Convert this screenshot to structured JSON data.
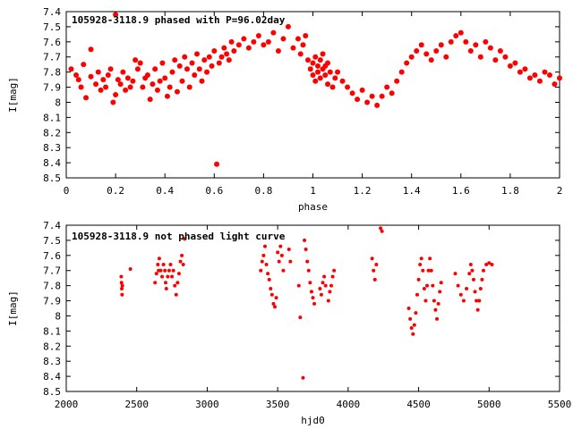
{
  "chart_data": [
    {
      "type": "scatter",
      "title": "105928-3118.9 phased with P=96.02day",
      "xlabel": "phase",
      "ylabel": "I[mag]",
      "xlim": [
        0,
        2
      ],
      "ylim": [
        8.5,
        7.4
      ],
      "y_inverted": true,
      "grid": false,
      "marker": "filled-circle",
      "color": "#ff0000",
      "xticks": [
        "0",
        "0.2",
        "0.4",
        "0.6",
        "0.8",
        "1",
        "1.2",
        "1.4",
        "1.6",
        "1.8",
        "2"
      ],
      "yticks": [
        "7.4",
        "7.5",
        "7.6",
        "7.7",
        "7.8",
        "7.9",
        "8",
        "8.1",
        "8.2",
        "8.3",
        "8.4",
        "8.5"
      ],
      "series": [
        {
          "points": [
            [
              0.02,
              7.78
            ],
            [
              0.04,
              7.82
            ],
            [
              0.05,
              7.85
            ],
            [
              0.06,
              7.9
            ],
            [
              0.07,
              7.75
            ],
            [
              0.08,
              7.97
            ],
            [
              0.1,
              7.65
            ],
            [
              0.1,
              7.83
            ],
            [
              0.12,
              7.88
            ],
            [
              0.13,
              7.8
            ],
            [
              0.14,
              7.92
            ],
            [
              0.15,
              7.85
            ],
            [
              0.16,
              7.9
            ],
            [
              0.17,
              7.82
            ],
            [
              0.18,
              7.78
            ],
            [
              0.19,
              8.0
            ],
            [
              0.2,
              7.95
            ],
            [
              0.2,
              7.42
            ],
            [
              0.21,
              7.85
            ],
            [
              0.22,
              7.88
            ],
            [
              0.23,
              7.8
            ],
            [
              0.24,
              7.92
            ],
            [
              0.25,
              7.84
            ],
            [
              0.26,
              7.9
            ],
            [
              0.27,
              7.86
            ],
            [
              0.28,
              7.72
            ],
            [
              0.29,
              7.78
            ],
            [
              0.3,
              7.74
            ],
            [
              0.31,
              7.9
            ],
            [
              0.32,
              7.84
            ],
            [
              0.33,
              7.82
            ],
            [
              0.34,
              7.98
            ],
            [
              0.35,
              7.88
            ],
            [
              0.36,
              7.78
            ],
            [
              0.37,
              7.92
            ],
            [
              0.38,
              7.86
            ],
            [
              0.39,
              7.74
            ],
            [
              0.4,
              7.84
            ],
            [
              0.41,
              7.96
            ],
            [
              0.42,
              7.9
            ],
            [
              0.43,
              7.8
            ],
            [
              0.44,
              7.72
            ],
            [
              0.45,
              7.93
            ],
            [
              0.46,
              7.76
            ],
            [
              0.47,
              7.86
            ],
            [
              0.48,
              7.7
            ],
            [
              0.49,
              7.78
            ],
            [
              0.5,
              7.9
            ],
            [
              0.51,
              7.74
            ],
            [
              0.52,
              7.82
            ],
            [
              0.53,
              7.68
            ],
            [
              0.54,
              7.78
            ],
            [
              0.55,
              7.86
            ],
            [
              0.56,
              7.72
            ],
            [
              0.57,
              7.8
            ],
            [
              0.58,
              7.7
            ],
            [
              0.59,
              7.76
            ],
            [
              0.6,
              7.66
            ],
            [
              0.61,
              8.41
            ],
            [
              0.62,
              7.74
            ],
            [
              0.63,
              7.7
            ],
            [
              0.64,
              7.64
            ],
            [
              0.65,
              7.68
            ],
            [
              0.66,
              7.72
            ],
            [
              0.67,
              7.6
            ],
            [
              0.68,
              7.66
            ],
            [
              0.7,
              7.62
            ],
            [
              0.72,
              7.58
            ],
            [
              0.74,
              7.64
            ],
            [
              0.76,
              7.6
            ],
            [
              0.78,
              7.56
            ],
            [
              0.8,
              7.62
            ],
            [
              0.82,
              7.6
            ],
            [
              0.84,
              7.54
            ],
            [
              0.86,
              7.66
            ],
            [
              0.88,
              7.58
            ],
            [
              0.9,
              7.5
            ],
            [
              0.92,
              7.64
            ],
            [
              0.94,
              7.58
            ],
            [
              0.95,
              7.68
            ],
            [
              0.96,
              7.62
            ],
            [
              0.97,
              7.56
            ],
            [
              0.98,
              7.72
            ],
            [
              0.99,
              7.78
            ],
            [
              1.0,
              7.74
            ],
            [
              1.0,
              7.82
            ],
            [
              1.01,
              7.7
            ],
            [
              1.01,
              7.86
            ],
            [
              1.02,
              7.76
            ],
            [
              1.02,
              7.8
            ],
            [
              1.03,
              7.72
            ],
            [
              1.03,
              7.84
            ],
            [
              1.04,
              7.78
            ],
            [
              1.04,
              7.68
            ],
            [
              1.05,
              7.82
            ],
            [
              1.05,
              7.76
            ],
            [
              1.06,
              7.74
            ],
            [
              1.06,
              7.88
            ],
            [
              1.07,
              7.8
            ],
            [
              1.08,
              7.9
            ],
            [
              1.09,
              7.84
            ],
            [
              1.1,
              7.8
            ],
            [
              1.12,
              7.86
            ],
            [
              1.14,
              7.9
            ],
            [
              1.16,
              7.94
            ],
            [
              1.18,
              7.98
            ],
            [
              1.2,
              7.92
            ],
            [
              1.22,
              8.0
            ],
            [
              1.24,
              7.96
            ],
            [
              1.26,
              8.02
            ],
            [
              1.28,
              7.96
            ],
            [
              1.3,
              7.9
            ],
            [
              1.32,
              7.94
            ],
            [
              1.34,
              7.86
            ],
            [
              1.36,
              7.8
            ],
            [
              1.38,
              7.74
            ],
            [
              1.4,
              7.7
            ],
            [
              1.42,
              7.66
            ],
            [
              1.44,
              7.62
            ],
            [
              1.46,
              7.68
            ],
            [
              1.48,
              7.72
            ],
            [
              1.5,
              7.66
            ],
            [
              1.52,
              7.62
            ],
            [
              1.54,
              7.7
            ],
            [
              1.56,
              7.6
            ],
            [
              1.58,
              7.56
            ],
            [
              1.6,
              7.54
            ],
            [
              1.62,
              7.6
            ],
            [
              1.64,
              7.66
            ],
            [
              1.66,
              7.62
            ],
            [
              1.68,
              7.7
            ],
            [
              1.7,
              7.6
            ],
            [
              1.72,
              7.64
            ],
            [
              1.74,
              7.72
            ],
            [
              1.76,
              7.66
            ],
            [
              1.78,
              7.7
            ],
            [
              1.8,
              7.76
            ],
            [
              1.82,
              7.74
            ],
            [
              1.84,
              7.8
            ],
            [
              1.86,
              7.78
            ],
            [
              1.88,
              7.84
            ],
            [
              1.9,
              7.82
            ],
            [
              1.92,
              7.86
            ],
            [
              1.94,
              7.8
            ],
            [
              1.96,
              7.82
            ],
            [
              1.98,
              7.88
            ],
            [
              2.0,
              7.84
            ]
          ]
        }
      ]
    },
    {
      "type": "scatter",
      "title": "105928-3118.9 not phased light curve",
      "xlabel": "hjd0",
      "ylabel": "I[mag]",
      "xlim": [
        2000,
        5500
      ],
      "ylim": [
        8.5,
        7.4
      ],
      "y_inverted": true,
      "grid": false,
      "marker": "filled-circle",
      "color": "#ff0000",
      "xticks": [
        "2000",
        "2500",
        "3000",
        "3500",
        "4000",
        "4500",
        "5000",
        "5500"
      ],
      "yticks": [
        "7.4",
        "7.5",
        "7.6",
        "7.7",
        "7.8",
        "7.9",
        "8",
        "8.1",
        "8.2",
        "8.3",
        "8.4",
        "8.5"
      ],
      "series": [
        {
          "points": [
            [
              2390,
              7.74
            ],
            [
              2392,
              7.78
            ],
            [
              2394,
              7.82
            ],
            [
              2396,
              7.86
            ],
            [
              2398,
              7.8
            ],
            [
              2455,
              7.69
            ],
            [
              2630,
              7.78
            ],
            [
              2640,
              7.72
            ],
            [
              2650,
              7.66
            ],
            [
              2655,
              7.7
            ],
            [
              2660,
              7.62
            ],
            [
              2670,
              7.7
            ],
            [
              2680,
              7.74
            ],
            [
              2690,
              7.66
            ],
            [
              2700,
              7.7
            ],
            [
              2705,
              7.78
            ],
            [
              2710,
              7.82
            ],
            [
              2720,
              7.74
            ],
            [
              2730,
              7.7
            ],
            [
              2740,
              7.66
            ],
            [
              2750,
              7.74
            ],
            [
              2760,
              7.7
            ],
            [
              2770,
              7.8
            ],
            [
              2780,
              7.86
            ],
            [
              2790,
              7.78
            ],
            [
              2800,
              7.72
            ],
            [
              2810,
              7.64
            ],
            [
              2820,
              7.6
            ],
            [
              2830,
              7.66
            ],
            [
              2840,
              7.49
            ],
            [
              3380,
              7.7
            ],
            [
              3390,
              7.64
            ],
            [
              3400,
              7.6
            ],
            [
              3410,
              7.54
            ],
            [
              3420,
              7.66
            ],
            [
              3430,
              7.72
            ],
            [
              3440,
              7.76
            ],
            [
              3450,
              7.82
            ],
            [
              3460,
              7.86
            ],
            [
              3470,
              7.92
            ],
            [
              3480,
              7.94
            ],
            [
              3490,
              7.88
            ],
            [
              3500,
              7.58
            ],
            [
              3510,
              7.64
            ],
            [
              3520,
              7.54
            ],
            [
              3530,
              7.6
            ],
            [
              3540,
              7.7
            ],
            [
              3580,
              7.56
            ],
            [
              3590,
              7.64
            ],
            [
              3650,
              7.8
            ],
            [
              3660,
              8.01
            ],
            [
              3680,
              8.41
            ],
            [
              3690,
              7.5
            ],
            [
              3700,
              7.56
            ],
            [
              3710,
              7.64
            ],
            [
              3720,
              7.7
            ],
            [
              3730,
              7.78
            ],
            [
              3740,
              7.84
            ],
            [
              3750,
              7.88
            ],
            [
              3760,
              7.92
            ],
            [
              3800,
              7.82
            ],
            [
              3810,
              7.86
            ],
            [
              3820,
              7.78
            ],
            [
              3830,
              7.74
            ],
            [
              3840,
              7.8
            ],
            [
              3860,
              7.9
            ],
            [
              3870,
              7.84
            ],
            [
              3880,
              7.8
            ],
            [
              3890,
              7.74
            ],
            [
              3900,
              7.7
            ],
            [
              4170,
              7.62
            ],
            [
              4180,
              7.7
            ],
            [
              4190,
              7.76
            ],
            [
              4200,
              7.66
            ],
            [
              4230,
              7.42
            ],
            [
              4240,
              7.44
            ],
            [
              4430,
              7.95
            ],
            [
              4440,
              8.02
            ],
            [
              4450,
              8.08
            ],
            [
              4460,
              8.12
            ],
            [
              4470,
              8.06
            ],
            [
              4480,
              7.98
            ],
            [
              4490,
              7.86
            ],
            [
              4500,
              7.76
            ],
            [
              4510,
              7.66
            ],
            [
              4520,
              7.62
            ],
            [
              4530,
              7.7
            ],
            [
              4540,
              7.82
            ],
            [
              4550,
              7.9
            ],
            [
              4560,
              7.8
            ],
            [
              4570,
              7.7
            ],
            [
              4580,
              7.62
            ],
            [
              4590,
              7.7
            ],
            [
              4600,
              7.8
            ],
            [
              4610,
              7.9
            ],
            [
              4620,
              7.96
            ],
            [
              4630,
              8.02
            ],
            [
              4640,
              7.92
            ],
            [
              4650,
              7.84
            ],
            [
              4660,
              7.78
            ],
            [
              4760,
              7.72
            ],
            [
              4780,
              7.8
            ],
            [
              4800,
              7.86
            ],
            [
              4820,
              7.9
            ],
            [
              4840,
              7.82
            ],
            [
              4860,
              7.72
            ],
            [
              4870,
              7.66
            ],
            [
              4880,
              7.7
            ],
            [
              4890,
              7.76
            ],
            [
              4900,
              7.84
            ],
            [
              4910,
              7.9
            ],
            [
              4920,
              7.96
            ],
            [
              4930,
              7.9
            ],
            [
              4940,
              7.82
            ],
            [
              4950,
              7.76
            ],
            [
              4960,
              7.7
            ],
            [
              4980,
              7.66
            ],
            [
              5000,
              7.65
            ],
            [
              5020,
              7.66
            ]
          ]
        }
      ]
    }
  ]
}
